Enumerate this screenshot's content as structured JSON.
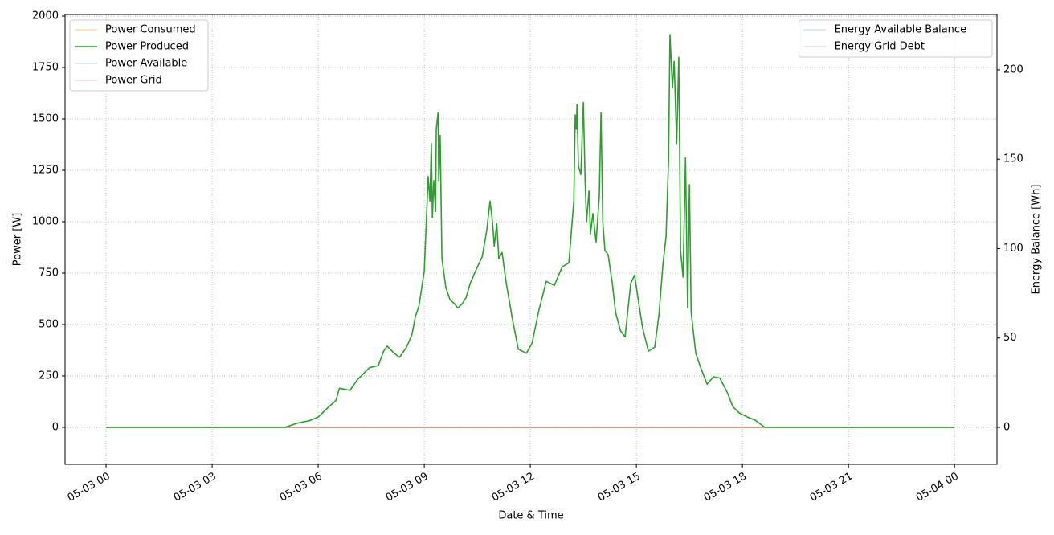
{
  "chart_data": {
    "type": "line",
    "xlabel": "Date & Time",
    "ylabel": "Power [W]",
    "y2label": "Energy Balance [Wh]",
    "x": [
      0,
      5.07,
      5.4,
      5.75,
      6.0,
      6.3,
      6.5,
      6.6,
      6.9,
      7.1,
      7.45,
      7.7,
      7.85,
      7.95,
      8.15,
      8.3,
      8.5,
      8.65,
      8.75,
      8.85,
      9.0,
      9.07,
      9.11,
      9.16,
      9.2,
      9.23,
      9.27,
      9.32,
      9.34,
      9.39,
      9.41,
      9.45,
      9.5,
      9.61,
      9.73,
      9.86,
      9.95,
      10.07,
      10.18,
      10.3,
      10.45,
      10.64,
      10.77,
      10.86,
      10.93,
      10.98,
      11.05,
      11.11,
      11.2,
      11.32,
      11.5,
      11.66,
      11.89,
      12.05,
      12.23,
      12.45,
      12.68,
      12.9,
      13.09,
      13.23,
      13.27,
      13.3,
      13.32,
      13.36,
      13.43,
      13.5,
      13.55,
      13.59,
      13.66,
      13.7,
      13.77,
      13.86,
      13.95,
      14.0,
      14.05,
      14.11,
      14.2,
      14.32,
      14.41,
      14.55,
      14.68,
      14.84,
      14.95,
      15.07,
      15.18,
      15.34,
      15.52,
      15.64,
      15.75,
      15.84,
      15.91,
      15.95,
      16.02,
      16.07,
      16.14,
      16.2,
      16.25,
      16.32,
      16.39,
      16.45,
      16.5,
      16.55,
      16.68,
      16.82,
      17.0,
      17.18,
      17.36,
      17.57,
      17.73,
      17.91,
      18.14,
      18.36,
      18.59,
      18.64,
      24
    ],
    "series": [
      {
        "name": "Power Consumed",
        "color": "#ff7f0e",
        "opacity": 0.3,
        "x": [
          0,
          24
        ],
        "values": [
          0,
          0
        ]
      },
      {
        "name": "Power Produced",
        "color": "#2ca02c",
        "opacity": 1,
        "values": [
          0,
          0,
          20,
          32,
          50,
          100,
          130,
          190,
          180,
          230,
          290,
          300,
          370,
          395,
          360,
          340,
          390,
          450,
          540,
          590,
          760,
          1050,
          1220,
          1100,
          1380,
          1020,
          1200,
          1050,
          1450,
          1530,
          1200,
          1420,
          820,
          680,
          620,
          600,
          580,
          600,
          630,
          700,
          760,
          830,
          960,
          1100,
          1000,
          880,
          990,
          820,
          850,
          700,
          520,
          380,
          360,
          410,
          560,
          710,
          690,
          780,
          800,
          1100,
          1520,
          1450,
          1570,
          1270,
          1230,
          1580,
          1200,
          1000,
          1150,
          940,
          1040,
          900,
          1120,
          1530,
          1000,
          860,
          840,
          700,
          560,
          470,
          440,
          700,
          740,
          600,
          480,
          370,
          390,
          550,
          790,
          930,
          1300,
          1910,
          1650,
          1780,
          1380,
          1800,
          860,
          730,
          1310,
          580,
          1180,
          560,
          360,
          290,
          210,
          245,
          240,
          170,
          100,
          70,
          50,
          35,
          5,
          0,
          0
        ]
      },
      {
        "name": "Power Available",
        "color": "#1f77b4",
        "opacity": 0.2,
        "x": [
          0,
          24
        ],
        "values": [
          0,
          0
        ]
      },
      {
        "name": "Power Grid",
        "color": "#d62728",
        "opacity": 0.2,
        "x": [
          0,
          24
        ],
        "values": [
          0,
          0
        ]
      },
      {
        "name": "Energy Available Balance",
        "color": "#1f77b4",
        "opacity": 0.2,
        "axis": "y2",
        "x": [
          0,
          24
        ],
        "values": [
          0,
          0
        ]
      },
      {
        "name": "Energy Grid Debt",
        "color": "#d62728",
        "opacity": 0.2,
        "axis": "y2",
        "x": [
          0,
          24
        ],
        "values": [
          0,
          0
        ]
      }
    ],
    "xlim": [
      -1.16,
      25.2
    ],
    "xticks": [
      {
        "value": 0,
        "label": "05-03 00"
      },
      {
        "value": 3,
        "label": "05-03 03"
      },
      {
        "value": 6,
        "label": "05-03 06"
      },
      {
        "value": 9,
        "label": "05-03 09"
      },
      {
        "value": 12,
        "label": "05-03 12"
      },
      {
        "value": 15,
        "label": "05-03 15"
      },
      {
        "value": 18,
        "label": "05-03 18"
      },
      {
        "value": 21,
        "label": "05-03 21"
      },
      {
        "value": 24,
        "label": "05-04 00"
      }
    ],
    "ylim": [
      -180,
      2008
    ],
    "yticks": [
      0,
      250,
      500,
      750,
      1000,
      1250,
      1500,
      1750,
      2000
    ],
    "y2lim": [
      -20.7,
      231
    ],
    "y2ticks": [
      0,
      50,
      100,
      150,
      200
    ],
    "grid": true,
    "legend": "upper left",
    "legend2": "upper right"
  }
}
